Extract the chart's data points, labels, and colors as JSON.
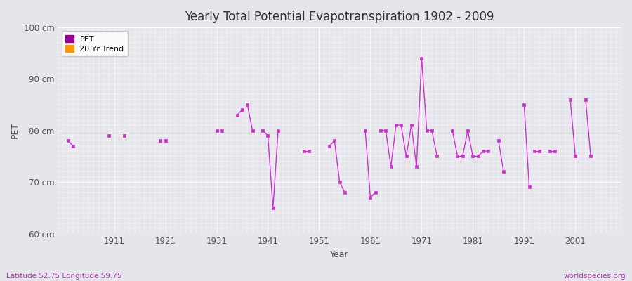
{
  "title": "Yearly Total Potential Evapotranspiration 1902 - 2009",
  "xlabel": "Year",
  "ylabel": "PET",
  "ylim": [
    60,
    100
  ],
  "yticks": [
    60,
    70,
    80,
    90,
    100
  ],
  "ytick_labels": [
    "60 cm",
    "70 cm",
    "80 cm",
    "90 cm",
    "100 cm"
  ],
  "xticks": [
    1911,
    1921,
    1931,
    1941,
    1951,
    1961,
    1971,
    1981,
    1991,
    2001
  ],
  "xlim": [
    1900,
    2010
  ],
  "background_color": "#e5e5ec",
  "line_color": "#cc33cc",
  "marker_color": "#cc33cc",
  "legend_pet_color": "#990099",
  "legend_trend_color": "#ff9900",
  "footer_left": "Latitude 52.75 Longitude 59.75",
  "footer_right": "worldspecies.org",
  "segments": [
    {
      "years": [
        1902,
        1903
      ],
      "values": [
        78,
        77
      ]
    },
    {
      "years": [
        1910
      ],
      "values": [
        79
      ]
    },
    {
      "years": [
        1913
      ],
      "values": [
        79
      ]
    },
    {
      "years": [
        1920,
        1921
      ],
      "values": [
        78,
        78
      ]
    },
    {
      "years": [
        1931,
        1932
      ],
      "values": [
        80,
        80
      ]
    },
    {
      "years": [
        1935,
        1936
      ],
      "values": [
        83,
        84
      ]
    },
    {
      "years": [
        1937,
        1938
      ],
      "values": [
        85,
        80
      ]
    },
    {
      "years": [
        1940,
        1941,
        1942,
        1943
      ],
      "values": [
        80,
        79,
        65,
        80
      ]
    },
    {
      "years": [
        1948,
        1949
      ],
      "values": [
        76,
        76
      ]
    },
    {
      "years": [
        1953,
        1954,
        1955,
        1956
      ],
      "values": [
        77,
        78,
        70,
        68
      ]
    },
    {
      "years": [
        1960,
        1961,
        1962
      ],
      "values": [
        80,
        67,
        68
      ]
    },
    {
      "years": [
        1963,
        1964,
        1965,
        1966,
        1967,
        1968,
        1969,
        1970,
        1971,
        1972,
        1973,
        1974
      ],
      "values": [
        80,
        80,
        73,
        81,
        81,
        75,
        81,
        73,
        94,
        80,
        80,
        75
      ]
    },
    {
      "years": [
        1977,
        1978,
        1979,
        1980,
        1981,
        1982,
        1983,
        1984
      ],
      "values": [
        80,
        75,
        75,
        80,
        75,
        75,
        76,
        76
      ]
    },
    {
      "years": [
        1986,
        1987
      ],
      "values": [
        78,
        72
      ]
    },
    {
      "years": [
        1991,
        1992
      ],
      "values": [
        85,
        69
      ]
    },
    {
      "years": [
        1993,
        1994
      ],
      "values": [
        76,
        76
      ]
    },
    {
      "years": [
        1996,
        1997
      ],
      "values": [
        76,
        76
      ]
    },
    {
      "years": [
        2000,
        2001
      ],
      "values": [
        86,
        75
      ]
    },
    {
      "years": [
        2003,
        2004
      ],
      "values": [
        86,
        75
      ]
    }
  ]
}
